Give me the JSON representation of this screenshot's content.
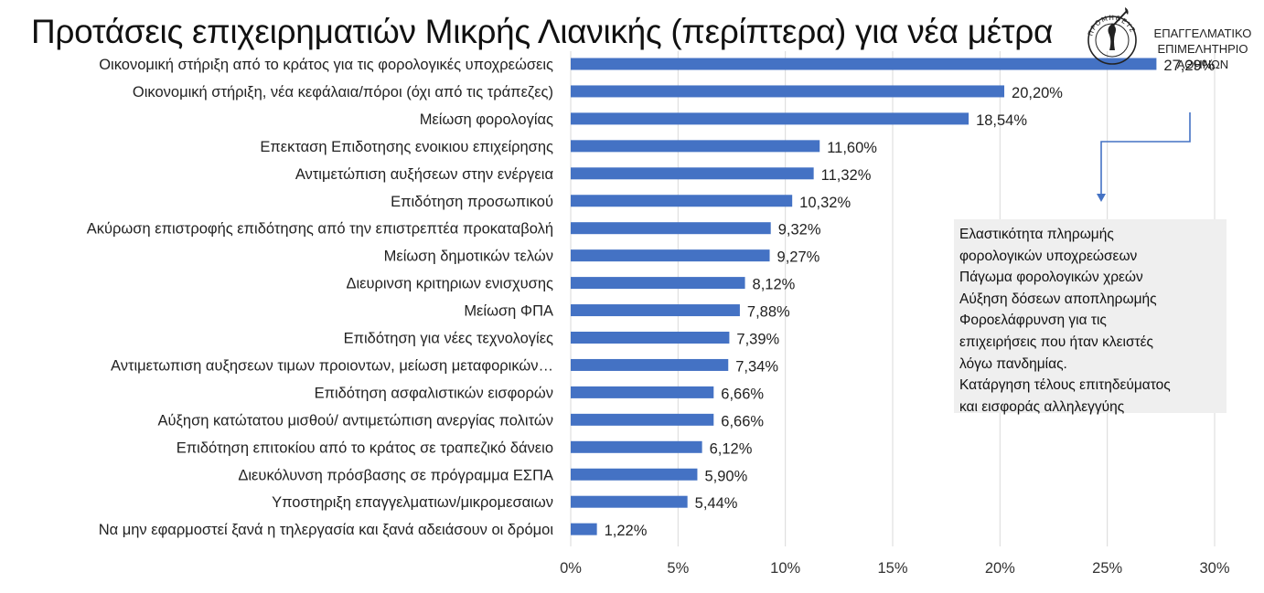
{
  "title": "Προτάσεις επιχειρηματιών Μικρής Λιανικής (περίπτερα) για νέα μέτρα",
  "logo": {
    "lines": [
      "ΕΠΑΓΓΕΛΜΑΤΙΚΟ",
      "ΕΠΙΜΕΛΗΤΗΡΙΟ",
      "ΑΘΗΝΩΝ"
    ],
    "seal_text": "ΠΡΟΜΗΘΕΥΣ"
  },
  "note_box": {
    "lines": [
      "Ελαστικότητα πληρωμής",
      "φορολογικών υποχρεώσεων",
      "Πάγωμα φορολογικών χρεών",
      "Αύξηση δόσεων αποπληρωμής",
      "Φοροελάφρυνση για τις",
      "επιχειρήσεις που ήταν κλειστές",
      "λόγω πανδημίας.",
      "Κατάργηση τέλους επιτηδεύματος",
      "και εισφοράς αλληλεγγύης"
    ]
  },
  "colors": {
    "bar": "#4472c4",
    "grid": "#d9d9d9",
    "arrow": "#4472c4",
    "note_bg": "#efefef"
  },
  "chart_data": {
    "type": "bar",
    "orientation": "horizontal",
    "title": "Προτάσεις επιχειρηματιών Μικρής Λιανικής (περίπτερα) για νέα μέτρα",
    "categories": [
      "Οικονομική στήριξη από το κράτος για τις φορολογικές υποχρεώσεις",
      "Οικονομική στήριξη, νέα κεφάλαια/πόροι (όχι από τις τράπεζες)",
      "Μείωση φορολογίας",
      "Επεκταση Επιδοτησης ενοικιου επιχείρησης",
      "Αντιμετώπιση αυξήσεων στην ενέργεια",
      "Επιδότηση προσωπικού",
      "Ακύρωση επιστροφής επιδότησης από την επιστρεπτέα προκαταβολή",
      "Μείωση δημοτικών τελών",
      "Διευρινση κριτηριων ενισχυσης",
      "Μείωση ΦΠΑ",
      "Επιδότηση για νέες τεχνολογίες",
      "Αντιμετωπιση αυξησεων τιμων προιοντων, μείωση μεταφορικών…",
      "Επιδότηση ασφαλιστικών εισφορών",
      "Αύξηση κατώτατου μισθού/ αντιμετώπιση ανεργίας πολιτών",
      "Επιδότηση επιτοκίου από το κράτος σε τραπεζικό δάνειο",
      "Διευκόλυνση πρόσβασης σε πρόγραμμα ΕΣΠΑ",
      "Υποστηριξη επαγγελματιων/μικρομεσαιων",
      "Να μην εφαρμοστεί ξανά η τηλεργασία και ξανά αδειάσουν οι δρόμοι"
    ],
    "values": [
      27.29,
      20.2,
      18.54,
      11.6,
      11.32,
      10.32,
      9.32,
      9.27,
      8.12,
      7.88,
      7.39,
      7.34,
      6.66,
      6.66,
      6.12,
      5.9,
      5.44,
      1.22
    ],
    "value_labels": [
      "27,29%",
      "20,20%",
      "18,54%",
      "11,60%",
      "11,32%",
      "10,32%",
      "9,32%",
      "9,27%",
      "8,12%",
      "7,88%",
      "7,39%",
      "7,34%",
      "6,66%",
      "6,66%",
      "6,12%",
      "5,90%",
      "5,44%",
      "1,22%"
    ],
    "xlim": [
      0,
      30
    ],
    "xticks": [
      0,
      5,
      10,
      15,
      20,
      25,
      30
    ],
    "xtick_labels": [
      "0%",
      "5%",
      "10%",
      "15%",
      "20%",
      "25%",
      "30%"
    ],
    "xlabel": "",
    "ylabel": "",
    "grid": "vertical",
    "legend": "none"
  }
}
